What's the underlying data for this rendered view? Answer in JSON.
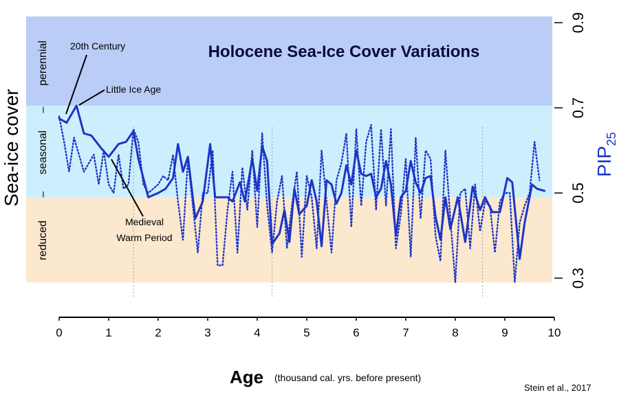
{
  "chart_data": {
    "type": "line",
    "title": "Holocene Sea-Ice Cover Variations",
    "xlabel": "Age",
    "xlabel_note": "(thousand cal. yrs. before present)",
    "ylabel_right": "PIP",
    "ylabel_right_sub": "25",
    "ylabel_left": "Sea-ice cover",
    "band_labels": [
      "reduced",
      "seasonal",
      "perennial"
    ],
    "band_separators": [
      "–",
      "–"
    ],
    "xlim": [
      0,
      10
    ],
    "ylim": [
      0.23,
      0.98
    ],
    "x_ticks": [
      "0",
      "1",
      "2",
      "3",
      "4",
      "5",
      "6",
      "7",
      "8",
      "9",
      "10"
    ],
    "y_ticks": [
      "0.3",
      "0.5",
      "0.7",
      "0.9"
    ],
    "bands": [
      {
        "name": "reduced",
        "from": 0.29,
        "to": 0.49,
        "color": "#fbe8cf"
      },
      {
        "name": "seasonal",
        "from": 0.49,
        "to": 0.705,
        "color": "#cdeefc"
      },
      {
        "name": "perennial",
        "from": 0.705,
        "to": 0.98,
        "color": "#b9cdf7"
      }
    ],
    "line_color": "#1b35c4",
    "annotations": [
      {
        "text": "20th Century",
        "x": 0.13,
        "y": 0.675
      },
      {
        "text": "Little Ice Age",
        "x": 0.33,
        "y": 0.71
      },
      {
        "text": "Medieval",
        "x": 1.0,
        "y": 0.58
      },
      {
        "text": "Warm Period",
        "x": 1.0,
        "y": 0.58
      }
    ],
    "credit": "Stein et al., 2017",
    "series": [
      {
        "style": "solid",
        "x": [
          0,
          0.15,
          0.35,
          0.5,
          0.65,
          0.85,
          1.0,
          1.2,
          1.35,
          1.5,
          1.6,
          1.8,
          2.0,
          2.15,
          2.3,
          2.4,
          2.5,
          2.6,
          2.75,
          2.9,
          3.05,
          3.15,
          3.25,
          3.4,
          3.5,
          3.65,
          3.75,
          3.9,
          4.0,
          4.1,
          4.2,
          4.3,
          4.45,
          4.55,
          4.65,
          4.75,
          4.85,
          5.0,
          5.1,
          5.2,
          5.3,
          5.4,
          5.5,
          5.6,
          5.7,
          5.8,
          5.9,
          6.0,
          6.1,
          6.2,
          6.3,
          6.4,
          6.5,
          6.6,
          6.7,
          6.8,
          6.9,
          7.0,
          7.1,
          7.2,
          7.3,
          7.4,
          7.5,
          7.6,
          7.7,
          7.8,
          7.9,
          8.05,
          8.2,
          8.35,
          8.5,
          8.6,
          8.75,
          8.9,
          9.05,
          9.15,
          9.3,
          9.4,
          9.55,
          9.65,
          9.8
        ],
        "values": [
          0.675,
          0.665,
          0.705,
          0.64,
          0.635,
          0.605,
          0.585,
          0.615,
          0.62,
          0.645,
          0.58,
          0.49,
          0.5,
          0.51,
          0.535,
          0.615,
          0.55,
          0.585,
          0.44,
          0.48,
          0.615,
          0.49,
          0.49,
          0.49,
          0.48,
          0.525,
          0.48,
          0.58,
          0.505,
          0.61,
          0.575,
          0.38,
          0.405,
          0.46,
          0.385,
          0.51,
          0.45,
          0.47,
          0.53,
          0.48,
          0.375,
          0.53,
          0.52,
          0.475,
          0.5,
          0.565,
          0.52,
          0.6,
          0.545,
          0.54,
          0.545,
          0.49,
          0.51,
          0.575,
          0.52,
          0.4,
          0.49,
          0.505,
          0.575,
          0.525,
          0.5,
          0.535,
          0.54,
          0.445,
          0.39,
          0.49,
          0.415,
          0.49,
          0.385,
          0.515,
          0.46,
          0.49,
          0.455,
          0.455,
          0.535,
          0.525,
          0.345,
          0.43,
          0.52,
          0.51,
          0.505
        ]
      },
      {
        "style": "dotted",
        "x": [
          0,
          0.1,
          0.2,
          0.3,
          0.4,
          0.5,
          0.6,
          0.7,
          0.8,
          0.9,
          1.0,
          1.1,
          1.2,
          1.3,
          1.4,
          1.5,
          1.6,
          1.7,
          1.8,
          1.9,
          2.0,
          2.1,
          2.2,
          2.3,
          2.4,
          2.5,
          2.6,
          2.7,
          2.8,
          2.9,
          3.0,
          3.1,
          3.2,
          3.3,
          3.4,
          3.5,
          3.6,
          3.7,
          3.8,
          3.9,
          4.0,
          4.1,
          4.2,
          4.3,
          4.4,
          4.5,
          4.6,
          4.7,
          4.8,
          4.9,
          5.0,
          5.1,
          5.2,
          5.3,
          5.4,
          5.5,
          5.6,
          5.7,
          5.8,
          5.9,
          6.0,
          6.1,
          6.2,
          6.3,
          6.4,
          6.5,
          6.6,
          6.7,
          6.8,
          6.9,
          7.0,
          7.1,
          7.2,
          7.3,
          7.4,
          7.5,
          7.6,
          7.7,
          7.8,
          7.9,
          8.0,
          8.1,
          8.2,
          8.3,
          8.4,
          8.5,
          8.6,
          8.7,
          8.8,
          8.9,
          9.0,
          9.1,
          9.2,
          9.3,
          9.4,
          9.5,
          9.6,
          9.7
        ],
        "values": [
          0.68,
          0.62,
          0.55,
          0.63,
          0.59,
          0.55,
          0.57,
          0.59,
          0.52,
          0.6,
          0.52,
          0.5,
          0.59,
          0.51,
          0.52,
          0.65,
          0.62,
          0.52,
          0.5,
          0.51,
          0.52,
          0.54,
          0.53,
          0.59,
          0.48,
          0.39,
          0.58,
          0.47,
          0.36,
          0.5,
          0.5,
          0.6,
          0.33,
          0.33,
          0.46,
          0.55,
          0.36,
          0.56,
          0.46,
          0.6,
          0.42,
          0.64,
          0.47,
          0.36,
          0.48,
          0.54,
          0.37,
          0.47,
          0.55,
          0.35,
          0.54,
          0.49,
          0.37,
          0.6,
          0.48,
          0.36,
          0.53,
          0.57,
          0.64,
          0.42,
          0.65,
          0.47,
          0.62,
          0.66,
          0.46,
          0.65,
          0.47,
          0.65,
          0.37,
          0.45,
          0.58,
          0.35,
          0.63,
          0.44,
          0.6,
          0.58,
          0.4,
          0.34,
          0.6,
          0.44,
          0.29,
          0.5,
          0.51,
          0.37,
          0.52,
          0.41,
          0.48,
          0.47,
          0.36,
          0.48,
          0.5,
          0.5,
          0.29,
          0.43,
          0.47,
          0.5,
          0.62,
          0.53
        ]
      }
    ]
  }
}
